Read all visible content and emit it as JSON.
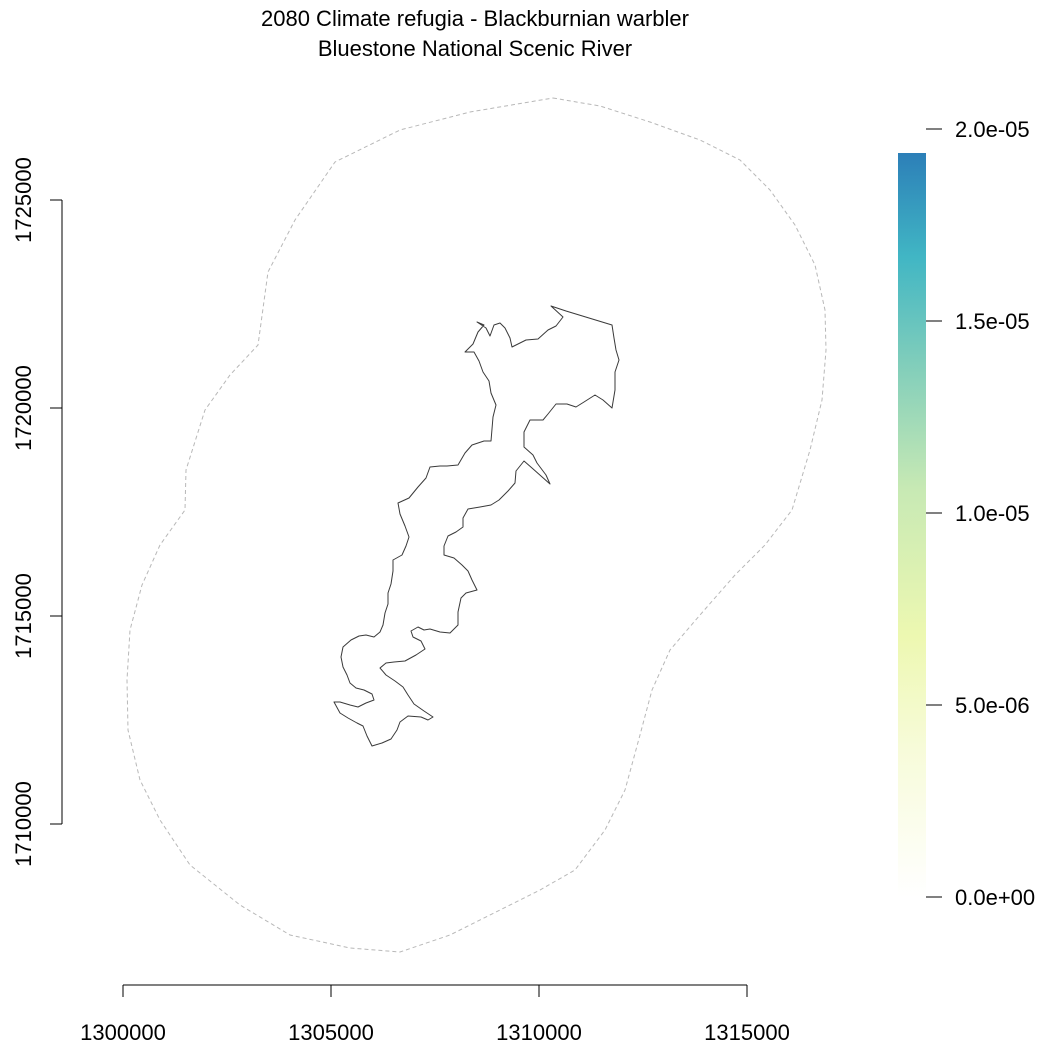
{
  "map": {
    "title_line1": "2080 Climate refugia - Blackburnian warbler",
    "title_line2": "Bluestone National Scenic River",
    "x_ticks": [
      1300000,
      1305000,
      1310000,
      1315000
    ],
    "x_tick_labels": [
      "1300000",
      "1305000",
      "1310000",
      "1315000"
    ],
    "y_ticks": [
      1710000,
      1715000,
      1720000,
      1725000
    ],
    "y_tick_labels": [
      "1710000",
      "1715000",
      "1720000",
      "1725000"
    ],
    "legend": {
      "ticks": [
        0,
        5e-06,
        1e-05,
        1.5e-05,
        2e-05
      ],
      "tick_labels": [
        "0.0e+00",
        "5.0e-06",
        "1.0e-05",
        "1.5e-05",
        "2.0e-05"
      ],
      "min": 0,
      "max": 2e-05,
      "fill_max": 1.93e-05,
      "colors": [
        "#ffffff",
        "#f7fbd9",
        "#edf8b1",
        "#c7e9b4",
        "#7fcdbb",
        "#41b6c4",
        "#2c7fb8"
      ]
    },
    "boundary_color": "#3a3a3a",
    "buffer_color": "#b8b8b8"
  }
}
